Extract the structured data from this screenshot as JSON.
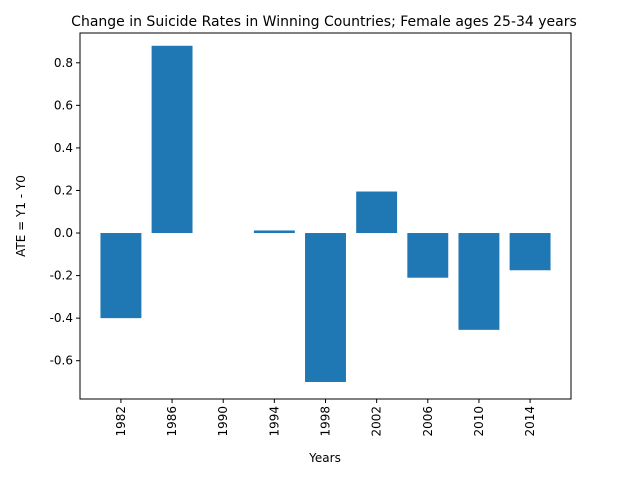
{
  "chart_data": {
    "type": "bar",
    "title": "Change in Suicide Rates in Winning Countries; Female ages 25-34 years",
    "xlabel": "Years",
    "ylabel": "ATE = Y1 - Y0",
    "categories": [
      "1982",
      "1986",
      "1990",
      "1994",
      "1998",
      "2002",
      "2006",
      "2010",
      "2014"
    ],
    "values": [
      -0.4,
      0.88,
      0.0,
      0.012,
      -0.7,
      0.195,
      -0.21,
      -0.455,
      -0.175
    ],
    "ylim": [
      -0.78,
      0.94
    ],
    "yticks": [
      "-0.6",
      "-0.4",
      "-0.2",
      "0.0",
      "0.2",
      "0.4",
      "0.6",
      "0.8"
    ],
    "grid": false,
    "bar_color": "#1f77b4"
  }
}
